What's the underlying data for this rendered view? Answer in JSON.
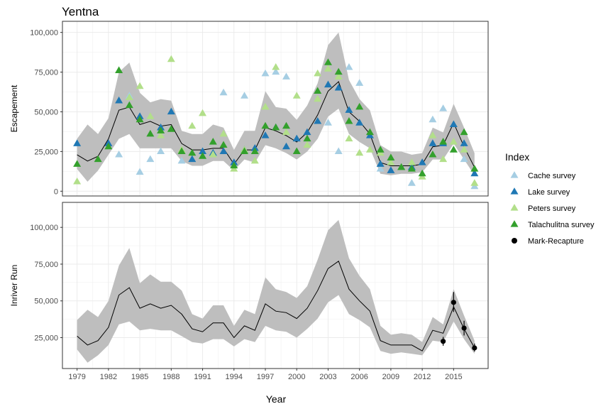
{
  "chart_data": {
    "type": "scatter",
    "title": "Yentna",
    "xlabel": "Year",
    "x_ticks": [
      "1979",
      "1982",
      "1985",
      "1988",
      "1991",
      "1994",
      "1997",
      "2000",
      "2003",
      "2006",
      "2009",
      "2012",
      "2015"
    ],
    "xlim": [
      1977.6,
      2018.3
    ],
    "legend": {
      "title": "Index",
      "placement": "right",
      "entries": [
        {
          "label": "Cache survey",
          "color": "#a6cee3",
          "shape": "triangle"
        },
        {
          "label": "Lake survey",
          "color": "#1f78b4",
          "shape": "triangle"
        },
        {
          "label": "Peters survey",
          "color": "#b2df8a",
          "shape": "triangle"
        },
        {
          "label": "Talachulitna survey",
          "color": "#33a02c",
          "shape": "triangle"
        },
        {
          "label": "Mark-Recapture",
          "color": "#000000",
          "shape": "circle"
        }
      ]
    },
    "panels": [
      {
        "ylabel": "Escapement",
        "ylim": [
          -3000,
          107000
        ],
        "y_ticks": [
          0,
          25000,
          50000,
          75000,
          100000
        ],
        "y_tick_labels": [
          "0",
          "25,000",
          "50,000",
          "75,000",
          "100,000"
        ],
        "grid": true,
        "estimate": {
          "x": [
            1979,
            1980,
            1981,
            1982,
            1983,
            1984,
            1985,
            1986,
            1987,
            1988,
            1989,
            1990,
            1991,
            1992,
            1993,
            1994,
            1995,
            1996,
            1997,
            1998,
            1999,
            2000,
            2001,
            2002,
            2003,
            2004,
            2005,
            2006,
            2007,
            2008,
            2009,
            2010,
            2011,
            2012,
            2013,
            2014,
            2015,
            2016,
            2017
          ],
          "mean": [
            23000,
            19000,
            22000,
            33000,
            51000,
            53000,
            42000,
            44000,
            41000,
            42000,
            30000,
            26000,
            26000,
            27000,
            27000,
            17000,
            26000,
            26000,
            40000,
            38000,
            35000,
            31000,
            37000,
            48000,
            63000,
            69000,
            50000,
            44000,
            36000,
            18000,
            16000,
            16000,
            16000,
            17000,
            28000,
            29000,
            43000,
            28000,
            15000
          ],
          "lower": [
            14000,
            6000,
            13000,
            23000,
            33000,
            36000,
            27000,
            27000,
            27000,
            27000,
            19000,
            16000,
            16000,
            19000,
            19000,
            13000,
            20000,
            18000,
            29000,
            27000,
            24000,
            20000,
            25000,
            33000,
            47000,
            52000,
            36000,
            31000,
            27000,
            11000,
            10000,
            11000,
            11000,
            12000,
            20000,
            20000,
            30000,
            20000,
            10000
          ],
          "upper": [
            33000,
            42000,
            36000,
            46000,
            75000,
            81000,
            62000,
            56000,
            58000,
            57000,
            38000,
            36000,
            36000,
            42000,
            40000,
            26000,
            38000,
            38000,
            63000,
            53000,
            52000,
            45000,
            54000,
            68000,
            92000,
            100000,
            70000,
            58000,
            51000,
            29000,
            25000,
            25000,
            23000,
            24000,
            40000,
            37000,
            55000,
            40000,
            24000
          ]
        },
        "series": [
          {
            "name": "Cache survey",
            "points": [
              [
                1983,
                23000
              ],
              [
                1984,
                60000
              ],
              [
                1985,
                12000
              ],
              [
                1986,
                20000
              ],
              [
                1987,
                25000
              ],
              [
                1989,
                19000
              ],
              [
                1993,
                62000
              ],
              [
                1995,
                60000
              ],
              [
                1997,
                74000
              ],
              [
                1998,
                75000
              ],
              [
                1999,
                72000
              ],
              [
                2003,
                43000
              ],
              [
                2004,
                25000
              ],
              [
                2005,
                78000
              ],
              [
                2006,
                68000
              ],
              [
                2008,
                14000
              ],
              [
                2011,
                5000
              ],
              [
                2013,
                45000
              ],
              [
                2014,
                52000
              ],
              [
                2016,
                20000
              ],
              [
                2017,
                3000
              ]
            ]
          },
          {
            "name": "Lake survey",
            "points": [
              [
                1979,
                30000
              ],
              [
                1982,
                30000
              ],
              [
                1983,
                57000
              ],
              [
                1985,
                47000
              ],
              [
                1987,
                40000
              ],
              [
                1988,
                50000
              ],
              [
                1990,
                20000
              ],
              [
                1991,
                25000
              ],
              [
                1992,
                24000
              ],
              [
                1993,
                25000
              ],
              [
                1994,
                18000
              ],
              [
                1995,
                26000
              ],
              [
                1996,
                27000
              ],
              [
                1997,
                35000
              ],
              [
                1998,
                40000
              ],
              [
                1999,
                28000
              ],
              [
                2000,
                33000
              ],
              [
                2001,
                37000
              ],
              [
                2002,
                44000
              ],
              [
                2003,
                67000
              ],
              [
                2004,
                65000
              ],
              [
                2005,
                51000
              ],
              [
                2006,
                43000
              ],
              [
                2007,
                35000
              ],
              [
                2008,
                17000
              ],
              [
                2009,
                13000
              ],
              [
                2010,
                15000
              ],
              [
                2011,
                15000
              ],
              [
                2012,
                18000
              ],
              [
                2013,
                30000
              ],
              [
                2014,
                30000
              ],
              [
                2015,
                42000
              ],
              [
                2016,
                30000
              ],
              [
                2017,
                11000
              ]
            ]
          },
          {
            "name": "Peters survey",
            "points": [
              [
                1979,
                6000
              ],
              [
                1984,
                59000
              ],
              [
                1985,
                66000
              ],
              [
                1986,
                47000
              ],
              [
                1987,
                35000
              ],
              [
                1988,
                83000
              ],
              [
                1989,
                26000
              ],
              [
                1990,
                41000
              ],
              [
                1991,
                49000
              ],
              [
                1992,
                23000
              ],
              [
                1993,
                36000
              ],
              [
                1994,
                14000
              ],
              [
                1995,
                26000
              ],
              [
                1996,
                19000
              ],
              [
                1997,
                53000
              ],
              [
                1998,
                78000
              ],
              [
                1999,
                37000
              ],
              [
                2000,
                60000
              ],
              [
                2001,
                29000
              ],
              [
                2002,
                74000
              ],
              [
                2002,
                58000
              ],
              [
                2003,
                77000
              ],
              [
                2004,
                72000
              ],
              [
                2005,
                33000
              ],
              [
                2006,
                24000
              ],
              [
                2007,
                26000
              ],
              [
                2008,
                24000
              ],
              [
                2009,
                18000
              ],
              [
                2010,
                15000
              ],
              [
                2011,
                18000
              ],
              [
                2012,
                9000
              ],
              [
                2013,
                35000
              ],
              [
                2014,
                20000
              ],
              [
                2015,
                31000
              ],
              [
                2016,
                26000
              ],
              [
                2017,
                5000
              ]
            ]
          },
          {
            "name": "Talachulitna survey",
            "points": [
              [
                1979,
                17000
              ],
              [
                1981,
                20000
              ],
              [
                1982,
                28000
              ],
              [
                1983,
                76000
              ],
              [
                1984,
                54000
              ],
              [
                1985,
                45000
              ],
              [
                1986,
                36000
              ],
              [
                1987,
                38000
              ],
              [
                1988,
                39000
              ],
              [
                1989,
                25000
              ],
              [
                1990,
                24000
              ],
              [
                1991,
                22000
              ],
              [
                1992,
                31000
              ],
              [
                1993,
                29000
              ],
              [
                1994,
                16000
              ],
              [
                1995,
                25000
              ],
              [
                1996,
                25000
              ],
              [
                1997,
                41000
              ],
              [
                1998,
                40000
              ],
              [
                1999,
                41000
              ],
              [
                2000,
                25000
              ],
              [
                2001,
                33000
              ],
              [
                2002,
                63000
              ],
              [
                2003,
                81000
              ],
              [
                2004,
                75000
              ],
              [
                2005,
                44000
              ],
              [
                2006,
                53000
              ],
              [
                2007,
                37000
              ],
              [
                2008,
                26000
              ],
              [
                2009,
                21000
              ],
              [
                2010,
                15000
              ],
              [
                2011,
                14000
              ],
              [
                2012,
                11000
              ],
              [
                2013,
                23000
              ],
              [
                2014,
                31000
              ],
              [
                2015,
                26000
              ],
              [
                2016,
                37000
              ],
              [
                2017,
                14000
              ]
            ]
          }
        ]
      },
      {
        "ylabel": "Inriver Run",
        "ylim": [
          4000,
          117000
        ],
        "y_ticks": [
          25000,
          50000,
          75000,
          100000
        ],
        "y_tick_labels": [
          "25,000",
          "50,000",
          "75,000",
          "100,000"
        ],
        "grid": true,
        "estimate": {
          "x": [
            1979,
            1980,
            1981,
            1982,
            1983,
            1984,
            1985,
            1986,
            1987,
            1988,
            1989,
            1990,
            1991,
            1992,
            1993,
            1994,
            1995,
            1996,
            1997,
            1998,
            1999,
            2000,
            2001,
            2002,
            2003,
            2004,
            2005,
            2006,
            2007,
            2008,
            2009,
            2010,
            2011,
            2012,
            2013,
            2014,
            2015,
            2016,
            2017
          ],
          "mean": [
            26000,
            20000,
            23000,
            32000,
            54000,
            59000,
            45000,
            48000,
            45000,
            47000,
            41000,
            31000,
            29000,
            35000,
            35000,
            25000,
            33000,
            30000,
            48000,
            43000,
            42000,
            38000,
            45000,
            57000,
            72000,
            77000,
            58000,
            50000,
            43000,
            23000,
            20000,
            20000,
            20000,
            16000,
            30000,
            28000,
            46000,
            31000,
            18000
          ],
          "lower": [
            17000,
            8000,
            13000,
            20000,
            34000,
            36000,
            30000,
            31000,
            30000,
            30000,
            26000,
            22000,
            21000,
            24000,
            24000,
            19000,
            24000,
            22000,
            33000,
            30000,
            29000,
            25000,
            31000,
            38000,
            49000,
            54000,
            41000,
            37000,
            32000,
            16000,
            14000,
            15000,
            14000,
            13000,
            23000,
            22000,
            36000,
            24000,
            14000
          ],
          "upper": [
            37000,
            44000,
            39000,
            50000,
            74000,
            86000,
            62000,
            68000,
            63000,
            63000,
            57000,
            41000,
            38000,
            47000,
            47000,
            33000,
            44000,
            41000,
            66000,
            58000,
            56000,
            52000,
            60000,
            78000,
            98000,
            105000,
            79000,
            67000,
            58000,
            33000,
            27000,
            28000,
            27000,
            22000,
            39000,
            34000,
            58000,
            40000,
            23000
          ]
        },
        "series": [
          {
            "name": "Mark-Recapture",
            "points": [
              {
                "x": 2014,
                "y": 22500,
                "lo": 19500,
                "hi": 25500
              },
              {
                "x": 2015,
                "y": 49000,
                "lo": 42500,
                "hi": 56000
              },
              {
                "x": 2016,
                "y": 31500,
                "lo": 26500,
                "hi": 36500
              },
              {
                "x": 2017,
                "y": 18000,
                "lo": 15500,
                "hi": 21000
              }
            ]
          }
        ]
      }
    ]
  }
}
